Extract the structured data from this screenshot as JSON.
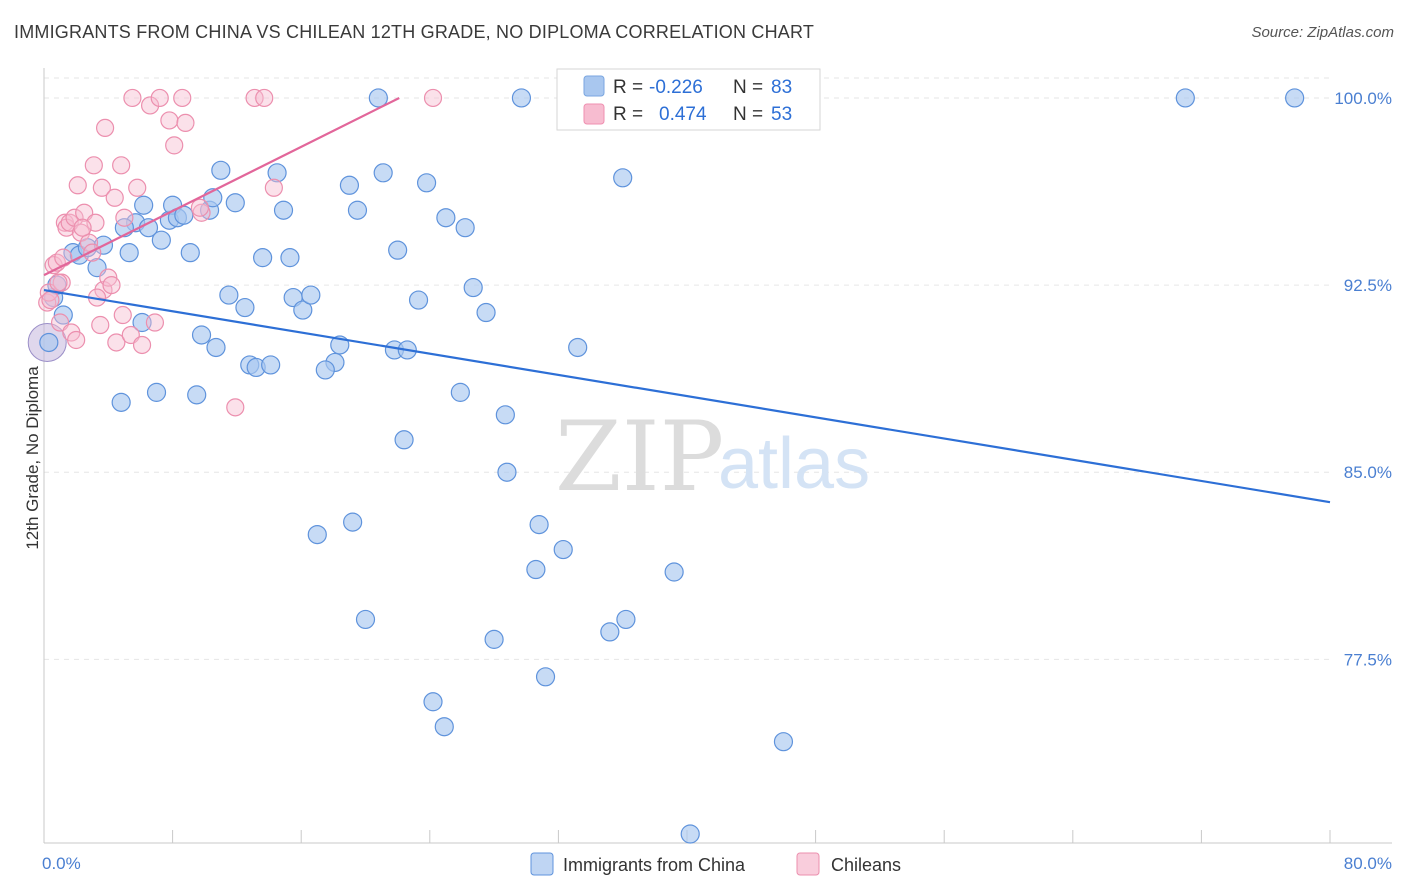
{
  "title": "IMMIGRANTS FROM CHINA VS CHILEAN 12TH GRADE, NO DIPLOMA CORRELATION CHART",
  "source": "Source: ZipAtlas.com",
  "watermark": {
    "zip": "ZIP",
    "atlas": "atlas"
  },
  "stats": {
    "r_label": "R =",
    "n_label": "N =",
    "rows": [
      {
        "r": "-0.226",
        "n": "83",
        "color": "#a9c7ef",
        "stroke": "#7aa6e0"
      },
      {
        "r": "0.474",
        "n": "53",
        "color": "#f7bcd0",
        "stroke": "#ef8fb0"
      }
    ]
  },
  "chart_data": {
    "type": "scatter",
    "xlabel": "",
    "ylabel": "12th Grade, No Diploma",
    "xlim": [
      0,
      80
    ],
    "ylim": [
      70.5,
      100.8
    ],
    "x_tick_labels": [
      {
        "v": 0,
        "label": "0.0%"
      },
      {
        "v": 80,
        "label": "80.0%"
      }
    ],
    "y_tick_labels": [
      {
        "v": 100,
        "label": "100.0%"
      },
      {
        "v": 92.5,
        "label": "92.5%"
      },
      {
        "v": 85,
        "label": "85.0%"
      },
      {
        "v": 77.5,
        "label": "77.5%"
      }
    ],
    "legend_position": "bottom-center",
    "grid": true,
    "series": [
      {
        "name": "Immigrants from China",
        "fill": "#a9c7ef",
        "stroke": "#5f93dc",
        "line_color": "#2d6fd6",
        "trend": [
          [
            0,
            92.3
          ],
          [
            80,
            83.8
          ]
        ],
        "points": [
          [
            0.3,
            90.2
          ],
          [
            0.6,
            92.0
          ],
          [
            0.8,
            92.5
          ],
          [
            1.2,
            91.3
          ],
          [
            1.8,
            93.8
          ],
          [
            2.2,
            93.7
          ],
          [
            2.7,
            94.0
          ],
          [
            3.3,
            93.2
          ],
          [
            3.7,
            94.1
          ],
          [
            4.8,
            87.8
          ],
          [
            5.3,
            93.8
          ],
          [
            5.7,
            95.0
          ],
          [
            6.1,
            91.0
          ],
          [
            6.2,
            95.7
          ],
          [
            6.5,
            94.8
          ],
          [
            7.0,
            88.2
          ],
          [
            7.3,
            94.3
          ],
          [
            7.8,
            95.1
          ],
          [
            8.0,
            95.7
          ],
          [
            8.3,
            95.2
          ],
          [
            8.7,
            95.3
          ],
          [
            9.1,
            93.8
          ],
          [
            9.5,
            88.1
          ],
          [
            9.8,
            90.5
          ],
          [
            10.3,
            95.5
          ],
          [
            10.7,
            90.0
          ],
          [
            11.0,
            97.1
          ],
          [
            11.5,
            92.1
          ],
          [
            11.9,
            95.8
          ],
          [
            12.5,
            91.6
          ],
          [
            12.8,
            89.3
          ],
          [
            13.2,
            89.2
          ],
          [
            13.6,
            93.6
          ],
          [
            14.1,
            89.3
          ],
          [
            14.5,
            97.0
          ],
          [
            14.9,
            95.5
          ],
          [
            15.3,
            93.6
          ],
          [
            15.5,
            92.0
          ],
          [
            16.1,
            91.5
          ],
          [
            16.6,
            92.1
          ],
          [
            17.0,
            82.5
          ],
          [
            18.1,
            89.4
          ],
          [
            18.4,
            90.1
          ],
          [
            19.0,
            96.5
          ],
          [
            19.2,
            83.0
          ],
          [
            19.5,
            95.5
          ],
          [
            20.0,
            79.1
          ],
          [
            20.8,
            100.0
          ],
          [
            21.1,
            97.0
          ],
          [
            21.8,
            89.9
          ],
          [
            22.0,
            93.9
          ],
          [
            22.4,
            86.3
          ],
          [
            22.6,
            89.9
          ],
          [
            23.3,
            91.9
          ],
          [
            23.8,
            96.6
          ],
          [
            24.2,
            75.8
          ],
          [
            24.9,
            74.8
          ],
          [
            25.9,
            88.2
          ],
          [
            26.2,
            94.8
          ],
          [
            26.7,
            92.4
          ],
          [
            27.5,
            91.4
          ],
          [
            28.0,
            78.3
          ],
          [
            28.7,
            87.3
          ],
          [
            28.8,
            85.0
          ],
          [
            29.7,
            100.0
          ],
          [
            30.6,
            81.1
          ],
          [
            30.8,
            82.9
          ],
          [
            31.2,
            76.8
          ],
          [
            32.3,
            81.9
          ],
          [
            33.0,
            100.0
          ],
          [
            33.2,
            90.0
          ],
          [
            35.2,
            78.6
          ],
          [
            36.0,
            96.8
          ],
          [
            36.2,
            79.1
          ],
          [
            39.2,
            81.0
          ],
          [
            40.2,
            70.5
          ],
          [
            46.0,
            74.2
          ],
          [
            71.0,
            100.0
          ],
          [
            77.8,
            100.0
          ],
          [
            25.0,
            95.2
          ],
          [
            10.5,
            96.0
          ],
          [
            17.5,
            89.1
          ],
          [
            5.0,
            94.8
          ]
        ]
      },
      {
        "name": "Chileans",
        "fill": "#f7bcd0",
        "stroke": "#ec8fae",
        "line_color": "#e2669a",
        "trend": [
          [
            0,
            92.9
          ],
          [
            22.1,
            100.0
          ]
        ],
        "points": [
          [
            0.2,
            91.8
          ],
          [
            0.3,
            92.2
          ],
          [
            0.4,
            91.9
          ],
          [
            0.6,
            93.3
          ],
          [
            0.8,
            93.4
          ],
          [
            1.0,
            91.0
          ],
          [
            1.1,
            92.6
          ],
          [
            1.3,
            95.0
          ],
          [
            1.4,
            94.8
          ],
          [
            1.6,
            95.0
          ],
          [
            1.7,
            90.6
          ],
          [
            1.9,
            95.2
          ],
          [
            2.0,
            90.3
          ],
          [
            2.1,
            96.5
          ],
          [
            2.3,
            94.6
          ],
          [
            2.5,
            95.4
          ],
          [
            2.8,
            94.2
          ],
          [
            3.0,
            93.8
          ],
          [
            3.1,
            97.3
          ],
          [
            3.2,
            95.0
          ],
          [
            3.5,
            90.9
          ],
          [
            3.6,
            96.4
          ],
          [
            3.7,
            92.3
          ],
          [
            3.8,
            98.8
          ],
          [
            4.0,
            92.8
          ],
          [
            4.2,
            92.5
          ],
          [
            4.4,
            96.0
          ],
          [
            4.5,
            90.2
          ],
          [
            4.8,
            97.3
          ],
          [
            4.9,
            91.3
          ],
          [
            5.0,
            95.2
          ],
          [
            5.4,
            90.5
          ],
          [
            5.5,
            100.0
          ],
          [
            5.8,
            96.4
          ],
          [
            6.1,
            90.1
          ],
          [
            6.6,
            99.7
          ],
          [
            6.9,
            91.0
          ],
          [
            7.2,
            100.0
          ],
          [
            7.8,
            99.1
          ],
          [
            8.1,
            98.1
          ],
          [
            8.6,
            100.0
          ],
          [
            8.8,
            99.0
          ],
          [
            9.8,
            95.4
          ],
          [
            11.9,
            87.6
          ],
          [
            13.1,
            100.0
          ],
          [
            13.7,
            100.0
          ],
          [
            14.3,
            96.4
          ],
          [
            24.2,
            100.0
          ],
          [
            1.2,
            93.6
          ],
          [
            0.9,
            92.6
          ],
          [
            2.4,
            94.8
          ],
          [
            9.7,
            95.6
          ],
          [
            3.3,
            92.0
          ]
        ]
      }
    ],
    "big_points": [
      [
        0.2,
        90.2
      ]
    ]
  }
}
